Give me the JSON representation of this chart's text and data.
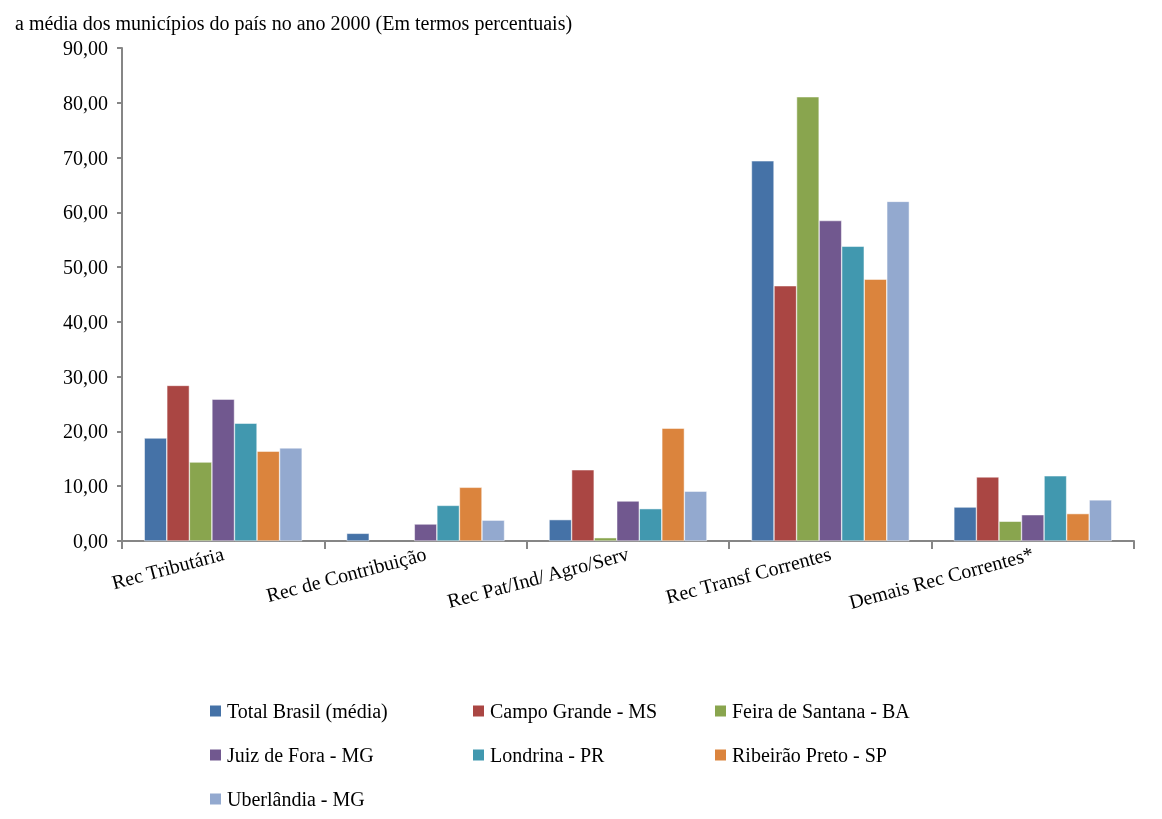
{
  "chart_data": {
    "type": "bar",
    "title": "a média dos municípios do país no ano 2000 (Em termos percentuais)",
    "categories": [
      "Rec Tributária",
      "Rec de Contribuição",
      "Rec Pat/Ind/ Agro/Serv",
      "Rec Transf Correntes",
      "Demais Rec Correntes*"
    ],
    "series": [
      {
        "name": "Total Brasil (média)",
        "color": "#4572a7",
        "values": [
          18.8,
          1.4,
          3.9,
          69.4,
          6.2
        ]
      },
      {
        "name": "Campo Grande - MS",
        "color": "#aa4643",
        "values": [
          28.4,
          null,
          13.0,
          46.6,
          11.7
        ]
      },
      {
        "name": "Feira de Santana - BA",
        "color": "#89a54e",
        "values": [
          14.4,
          null,
          0.6,
          81.1,
          3.6
        ]
      },
      {
        "name": "Juiz de Fora - MG",
        "color": "#71588f",
        "values": [
          25.9,
          3.1,
          7.3,
          58.5,
          4.8
        ]
      },
      {
        "name": "Londrina - PR",
        "color": "#4198af",
        "values": [
          21.5,
          6.5,
          5.9,
          53.8,
          11.9
        ]
      },
      {
        "name": "Ribeirão Preto - SP",
        "color": "#db843d",
        "values": [
          16.4,
          9.8,
          20.6,
          47.8,
          5.0
        ]
      },
      {
        "name": "Uberlândia - MG",
        "color": "#93a9cf",
        "values": [
          17.0,
          3.8,
          9.1,
          62.0,
          7.5
        ]
      }
    ],
    "ylim": [
      0,
      90
    ],
    "yticks": [
      {
        "value": 0,
        "label": "0,00"
      },
      {
        "value": 10,
        "label": "10,00"
      },
      {
        "value": 20,
        "label": "20,00"
      },
      {
        "value": 30,
        "label": "30,00"
      },
      {
        "value": 40,
        "label": "40,00"
      },
      {
        "value": 50,
        "label": "50,00"
      },
      {
        "value": 60,
        "label": "60,00"
      },
      {
        "value": 70,
        "label": "70,00"
      },
      {
        "value": 80,
        "label": "80,00"
      },
      {
        "value": 90,
        "label": "90,00"
      }
    ],
    "grid": false,
    "legend": "bottom"
  }
}
